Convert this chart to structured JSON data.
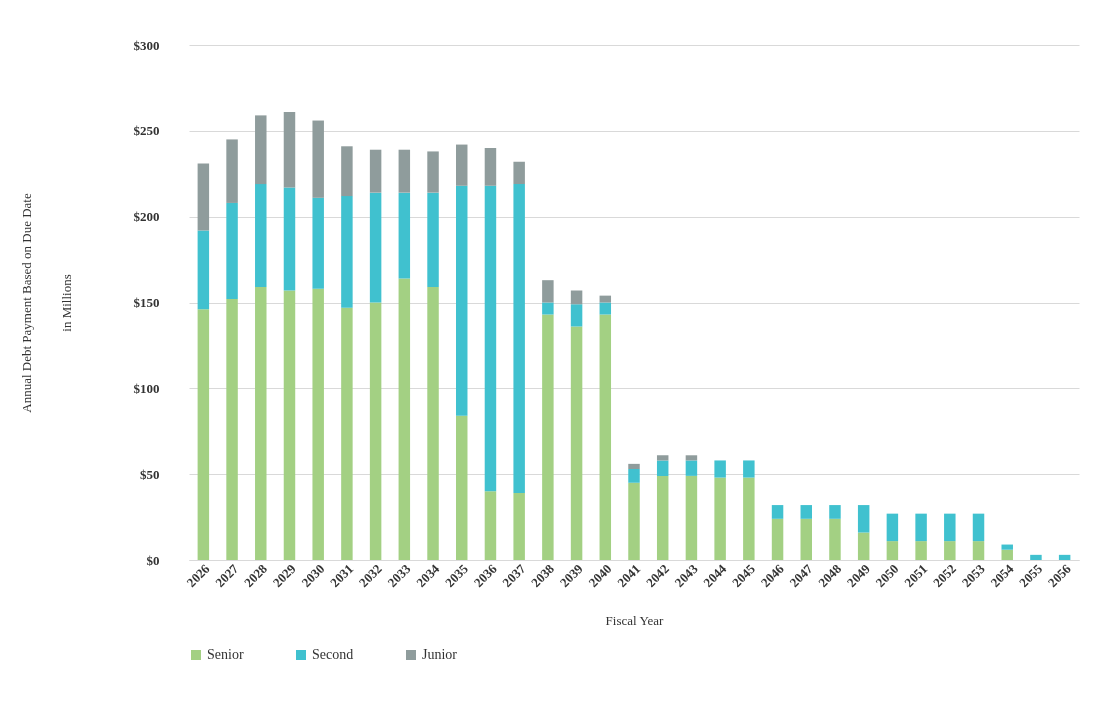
{
  "chart_data": {
    "type": "bar",
    "stacked": true,
    "xlabel": "Fiscal Year",
    "ylabel": "Annual  Debt Payment Based on Due Date\nin Millions",
    "categories": [
      "2026",
      "2027",
      "2028",
      "2029",
      "2030",
      "2031",
      "2032",
      "2033",
      "2034",
      "2035",
      "2036",
      "2037",
      "2038",
      "2039",
      "2040",
      "2041",
      "2042",
      "2043",
      "2044",
      "2045",
      "2046",
      "2047",
      "2048",
      "2049",
      "2050",
      "2051",
      "2052",
      "2053",
      "2054",
      "2055",
      "2056"
    ],
    "series": [
      {
        "name": "Senior",
        "color": "#a3d083",
        "values": [
          146,
          152,
          159,
          157,
          158,
          147,
          150,
          164,
          159,
          84,
          40,
          39,
          143,
          136,
          143,
          45,
          49,
          49,
          48,
          48,
          24,
          24,
          24,
          16,
          11,
          11,
          11,
          11,
          6,
          0,
          0
        ]
      },
      {
        "name": "Second",
        "color": "#40c1cf",
        "values": [
          46,
          56,
          60,
          60,
          53,
          65,
          64,
          50,
          55,
          134,
          178,
          180,
          7,
          13,
          7,
          8,
          9,
          9,
          10,
          10,
          8,
          8,
          8,
          16,
          16,
          16,
          16,
          16,
          3,
          3,
          3
        ]
      },
      {
        "name": "Junior",
        "color": "#8f9c9c",
        "values": [
          39,
          37,
          40,
          44,
          45,
          29,
          25,
          25,
          24,
          24,
          22,
          13,
          13,
          8,
          4,
          3,
          3,
          3,
          0,
          0,
          0,
          0,
          0,
          0,
          0,
          0,
          0,
          0,
          0,
          0,
          0
        ]
      }
    ],
    "ylim": [
      0,
      300
    ],
    "yticks": [
      {
        "value": 0,
        "label": "$0"
      },
      {
        "value": 50,
        "label": "$50"
      },
      {
        "value": 100,
        "label": "$100"
      },
      {
        "value": 150,
        "label": "$150"
      },
      {
        "value": 200,
        "label": "$200"
      },
      {
        "value": 250,
        "label": "$250"
      },
      {
        "value": 300,
        "label": "$300"
      }
    ],
    "grid": "y",
    "legend": "bottom"
  }
}
